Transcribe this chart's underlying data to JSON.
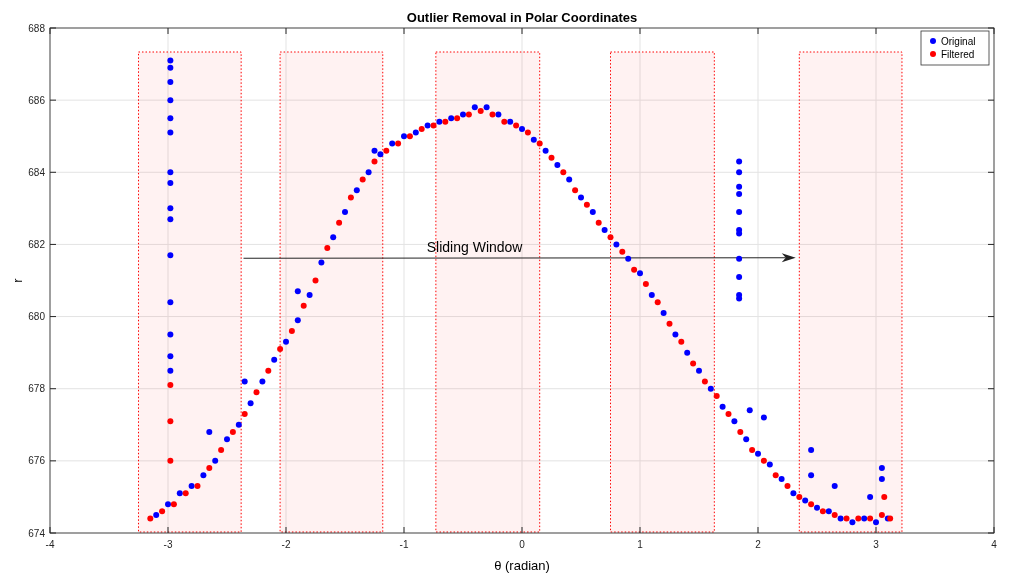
{
  "chart_data": {
    "type": "scatter",
    "title": "Outlier Removal in Polar Coordinates",
    "xlabel": "θ (radian)",
    "ylabel": "r",
    "annotations": [
      "Sliding Window"
    ],
    "xlim": [
      -4,
      4
    ],
    "xticks": [
      -4,
      -3,
      -2,
      -1,
      0,
      1,
      2,
      3,
      4
    ],
    "ylim": [
      674,
      688
    ],
    "yticks": [
      674,
      676,
      678,
      680,
      682,
      684,
      686,
      688
    ],
    "grid": true,
    "legend": "top right",
    "marker": "circle",
    "bands": [
      {
        "axis": "x",
        "from": -3.25,
        "to": -2.38,
        "color": "#ff0000"
      },
      {
        "axis": "x",
        "from": -2.05,
        "to": -1.18,
        "color": "#ff0000"
      },
      {
        "axis": "x",
        "from": -0.73,
        "to": 0.15,
        "color": "#ff0000"
      },
      {
        "axis": "x",
        "from": 0.75,
        "to": 1.63,
        "color": "#ff0000"
      },
      {
        "axis": "x",
        "from": 2.35,
        "to": 3.22,
        "color": "#ff0000"
      }
    ],
    "series": [
      {
        "name": "Original",
        "color": "#0000ff",
        "x": [
          -3.1,
          -3.0,
          -2.9,
          -2.8,
          -2.7,
          -2.65,
          -2.6,
          -2.5,
          -2.4,
          -2.35,
          -2.3,
          -2.2,
          -2.1,
          -2.0,
          -1.9,
          -1.9,
          -1.8,
          -1.7,
          -1.6,
          -1.5,
          -1.4,
          -1.3,
          -1.25,
          -1.2,
          -1.1,
          -1.0,
          -0.9,
          -0.8,
          -0.7,
          -0.6,
          -0.5,
          -0.4,
          -0.3,
          -0.2,
          -0.1,
          0.0,
          0.1,
          0.2,
          0.3,
          0.4,
          0.5,
          0.6,
          0.7,
          0.8,
          0.9,
          1.0,
          1.1,
          1.2,
          1.3,
          1.4,
          1.5,
          1.6,
          1.7,
          1.8,
          1.9,
          1.93,
          2.0,
          2.05,
          2.1,
          2.2,
          2.3,
          2.4,
          2.45,
          2.45,
          2.5,
          2.6,
          2.65,
          2.7,
          2.8,
          2.9,
          2.95,
          3.0,
          3.05,
          3.05,
          3.1,
          -2.98,
          -2.98,
          -2.98,
          -2.98,
          -2.98,
          -2.98,
          -2.98,
          -2.98,
          -2.98,
          -2.98,
          -2.98,
          -2.98,
          -2.98,
          -2.98,
          -2.98,
          1.84,
          1.84,
          1.84,
          1.84,
          1.84,
          1.84,
          1.84,
          1.84,
          1.84,
          1.84,
          1.84
        ],
        "values": [
          674.5,
          674.8,
          675.1,
          675.3,
          675.6,
          676.8,
          676.0,
          676.6,
          677.0,
          678.2,
          677.6,
          678.2,
          678.8,
          679.3,
          679.9,
          680.7,
          680.6,
          681.5,
          682.2,
          682.9,
          683.5,
          684.0,
          684.6,
          684.5,
          684.8,
          685.0,
          685.1,
          685.3,
          685.4,
          685.5,
          685.6,
          685.8,
          685.8,
          685.6,
          685.4,
          685.2,
          684.9,
          684.6,
          684.2,
          683.8,
          683.3,
          682.9,
          682.4,
          682.0,
          681.6,
          681.2,
          680.6,
          680.1,
          679.5,
          679.0,
          678.5,
          678.0,
          677.5,
          677.1,
          676.6,
          677.4,
          676.2,
          677.2,
          675.9,
          675.5,
          675.1,
          674.9,
          676.3,
          675.6,
          674.7,
          674.6,
          675.3,
          674.4,
          674.3,
          674.4,
          675.0,
          674.3,
          675.8,
          675.5,
          674.4,
          687.1,
          686.9,
          686.5,
          686.0,
          685.5,
          685.1,
          684.0,
          683.7,
          683.0,
          682.7,
          681.7,
          680.4,
          679.5,
          678.9,
          678.5,
          684.3,
          684.0,
          683.6,
          683.4,
          682.9,
          682.4,
          682.3,
          681.6,
          681.1,
          680.6,
          680.5
        ]
      },
      {
        "name": "Filtered",
        "color": "#ff0000",
        "x": [
          -3.15,
          -3.05,
          -2.95,
          -2.85,
          -2.75,
          -2.65,
          -2.55,
          -2.45,
          -2.35,
          -2.25,
          -2.15,
          -2.05,
          -1.95,
          -1.85,
          -1.75,
          -1.65,
          -1.55,
          -1.45,
          -1.35,
          -1.25,
          -1.15,
          -1.05,
          -0.95,
          -0.85,
          -0.75,
          -0.65,
          -0.55,
          -0.45,
          -0.35,
          -0.25,
          -0.15,
          -0.05,
          0.05,
          0.15,
          0.25,
          0.35,
          0.45,
          0.55,
          0.65,
          0.75,
          0.85,
          0.95,
          1.05,
          1.15,
          1.25,
          1.35,
          1.45,
          1.55,
          1.65,
          1.75,
          1.85,
          1.95,
          2.05,
          2.15,
          2.25,
          2.35,
          2.45,
          2.55,
          2.65,
          2.75,
          2.85,
          2.95,
          3.05,
          3.12,
          -2.98,
          -2.98,
          -2.98,
          3.07
        ],
        "values": [
          674.4,
          674.6,
          674.8,
          675.1,
          675.3,
          675.8,
          676.3,
          676.8,
          677.3,
          677.9,
          678.5,
          679.1,
          679.6,
          680.3,
          681.0,
          681.9,
          682.6,
          683.3,
          683.8,
          684.3,
          684.6,
          684.8,
          685.0,
          685.2,
          685.3,
          685.4,
          685.5,
          685.6,
          685.7,
          685.6,
          685.4,
          685.3,
          685.1,
          684.8,
          684.4,
          684.0,
          683.5,
          683.1,
          682.6,
          682.2,
          681.8,
          681.3,
          680.9,
          680.4,
          679.8,
          679.3,
          678.7,
          678.2,
          677.8,
          677.3,
          676.8,
          676.3,
          676.0,
          675.6,
          675.3,
          675.0,
          674.8,
          674.6,
          674.5,
          674.4,
          674.4,
          674.4,
          674.5,
          674.4,
          678.1,
          677.1,
          676.0,
          675.0
        ]
      }
    ]
  }
}
